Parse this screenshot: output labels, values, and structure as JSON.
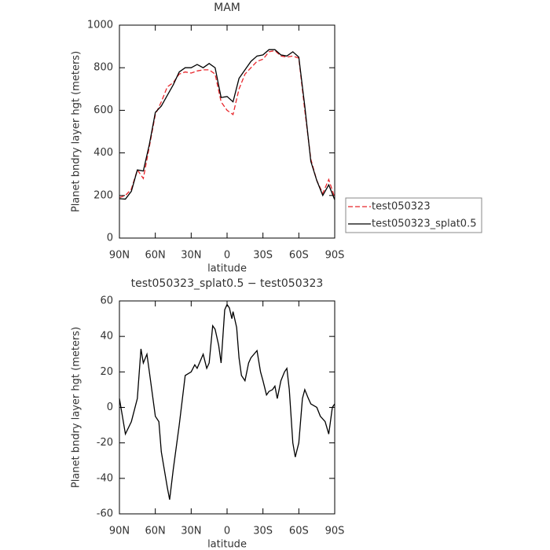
{
  "chart_data": [
    {
      "type": "line",
      "title": "MAM",
      "xlabel": "latitude",
      "ylabel": "Planet bndry layer hgt (meters)",
      "x": [
        90,
        85,
        80,
        75,
        70,
        65,
        60,
        55,
        50,
        45,
        40,
        35,
        30,
        25,
        20,
        15,
        10,
        5,
        0,
        -5,
        -10,
        -15,
        -20,
        -25,
        -30,
        -35,
        -40,
        -45,
        -50,
        -55,
        -60,
        -65,
        -70,
        -75,
        -80,
        -85,
        -90
      ],
      "series": [
        {
          "name": "test050323",
          "color": "#e8262b",
          "linestyle": "dashed",
          "values": [
            190,
            200,
            230,
            320,
            280,
            430,
            580,
            640,
            710,
            730,
            770,
            780,
            775,
            785,
            790,
            790,
            770,
            640,
            600,
            580,
            700,
            770,
            800,
            830,
            840,
            875,
            880,
            855,
            850,
            855,
            845,
            600,
            370,
            270,
            210,
            275,
            190
          ]
        },
        {
          "name": "test050323_splat0.5",
          "color": "#000000",
          "linestyle": "solid",
          "values": [
            185,
            183,
            220,
            320,
            315,
            440,
            590,
            620,
            670,
            720,
            780,
            800,
            800,
            815,
            800,
            820,
            800,
            660,
            665,
            640,
            750,
            790,
            830,
            855,
            860,
            885,
            885,
            860,
            855,
            875,
            850,
            620,
            360,
            270,
            200,
            250,
            180
          ]
        }
      ],
      "xlim": [
        90,
        -90
      ],
      "xticks": [
        {
          "value": 90,
          "label": "90N"
        },
        {
          "value": 60,
          "label": "60N"
        },
        {
          "value": 30,
          "label": "30N"
        },
        0,
        {
          "value": -30,
          "label": "30S"
        },
        {
          "value": -60,
          "label": "60S"
        },
        {
          "value": -90,
          "label": "90S"
        }
      ],
      "ylim": [
        0,
        1000
      ],
      "yticks": [
        0,
        200,
        400,
        600,
        800,
        1000
      ],
      "legend": "right"
    },
    {
      "type": "line",
      "title": "test050323_splat0.5 − test050323",
      "xlabel": "latitude",
      "ylabel": "Planet bndry layer hgt (meters)",
      "x": [
        90,
        85,
        80,
        75,
        72,
        70,
        67,
        65,
        60,
        57,
        55,
        50,
        48,
        45,
        40,
        35,
        30,
        27,
        25,
        20,
        17,
        15,
        12,
        10,
        7,
        5,
        2,
        0,
        -2,
        -4,
        -5,
        -8,
        -10,
        -12,
        -15,
        -18,
        -20,
        -25,
        -28,
        -30,
        -33,
        -35,
        -38,
        -40,
        -42,
        -45,
        -48,
        -50,
        -52,
        -55,
        -57,
        -60,
        -63,
        -65,
        -68,
        -70,
        -75,
        -78,
        -82,
        -85,
        -88,
        -90
      ],
      "values": [
        5,
        -15,
        -8,
        5,
        33,
        25,
        30,
        20,
        -5,
        -8,
        -25,
        -45,
        -52,
        -35,
        -10,
        18,
        20,
        24,
        22,
        30,
        22,
        25,
        46,
        44,
        35,
        25,
        55,
        58,
        56,
        50,
        54,
        45,
        28,
        18,
        15,
        25,
        28,
        32,
        20,
        15,
        7,
        9,
        10,
        12,
        5,
        15,
        20,
        22,
        10,
        -20,
        -28,
        -20,
        5,
        10,
        5,
        2,
        0,
        -5,
        -8,
        -15,
        0,
        2
      ],
      "color": "#000000",
      "xlim": [
        90,
        -90
      ],
      "xticks": [
        {
          "value": 90,
          "label": "90N"
        },
        {
          "value": 60,
          "label": "60N"
        },
        {
          "value": 30,
          "label": "30N"
        },
        0,
        {
          "value": -30,
          "label": "30S"
        },
        {
          "value": -60,
          "label": "60S"
        },
        {
          "value": -90,
          "label": "90S"
        }
      ],
      "ylim": [
        -60,
        60
      ],
      "yticks": [
        -60,
        -40,
        -20,
        0,
        20,
        40,
        60
      ]
    }
  ]
}
